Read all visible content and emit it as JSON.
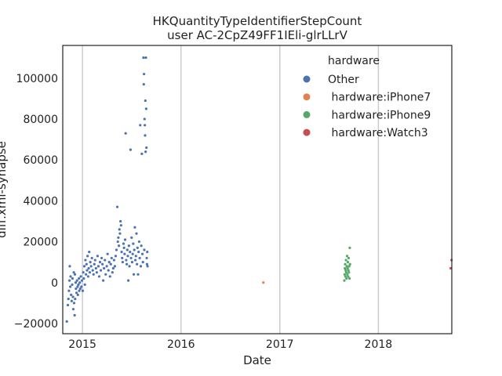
{
  "chart_data": {
    "type": "scatter",
    "title": "HKQuantityTypeIdentifierStepCount",
    "subtitle": "user AC-2CpZ49FF1IEli-glrLLrV",
    "xlabel": "Date",
    "ylabel": "diff.xml-synapse",
    "xlim": [
      "2014-10-20",
      "2018-09-30"
    ],
    "ylim": [
      -25000,
      116000
    ],
    "x_ticks": [
      "2015-01-01",
      "2016-01-01",
      "2017-01-01",
      "2018-01-01"
    ],
    "x_tick_labels": [
      "2015",
      "2016",
      "2017",
      "2018"
    ],
    "y_ticks": [
      -20000,
      0,
      20000,
      40000,
      60000,
      80000,
      100000
    ],
    "y_tick_labels": [
      "−20000",
      "0",
      "20000",
      "40000",
      "60000",
      "80000",
      "100000"
    ],
    "grid": "vertical",
    "legend": {
      "title": "hardware",
      "placement": "top-right",
      "entries": [
        "Other",
        " hardware:iPhone7",
        " hardware:iPhone9",
        " hardware:Watch3"
      ]
    },
    "series": [
      {
        "name": "Other",
        "color": "#4c72b0",
        "points": [
          [
            "2014-11-04",
            -19000
          ],
          [
            "2014-11-08",
            -11000
          ],
          [
            "2014-11-10",
            -8000
          ],
          [
            "2014-11-12",
            -4000
          ],
          [
            "2014-11-14",
            1000
          ],
          [
            "2014-11-15",
            8000
          ],
          [
            "2014-11-17",
            -2000
          ],
          [
            "2014-11-18",
            3000
          ],
          [
            "2014-11-20",
            -6000
          ],
          [
            "2014-11-22",
            -9000
          ],
          [
            "2014-11-24",
            -1000
          ],
          [
            "2014-11-25",
            2000
          ],
          [
            "2014-11-27",
            -7000
          ],
          [
            "2014-11-28",
            -13000
          ],
          [
            "2014-11-30",
            5000
          ],
          [
            "2014-12-01",
            -10000
          ],
          [
            "2014-12-03",
            -16000
          ],
          [
            "2014-12-04",
            4000
          ],
          [
            "2014-12-05",
            -8000
          ],
          [
            "2014-12-07",
            0
          ],
          [
            "2014-12-08",
            -3000
          ],
          [
            "2014-12-10",
            -5000
          ],
          [
            "2014-12-12",
            1000
          ],
          [
            "2014-12-14",
            -2000
          ],
          [
            "2014-12-15",
            -6000
          ],
          [
            "2014-12-17",
            -1000
          ],
          [
            "2014-12-19",
            2000
          ],
          [
            "2014-12-20",
            -4000
          ],
          [
            "2014-12-22",
            0
          ],
          [
            "2014-12-24",
            -3000
          ],
          [
            "2014-12-26",
            3000
          ],
          [
            "2014-12-28",
            -2000
          ],
          [
            "2014-12-30",
            1000
          ],
          [
            "2015-01-02",
            -4000
          ],
          [
            "2015-01-04",
            5000
          ],
          [
            "2015-01-06",
            2000
          ],
          [
            "2015-01-08",
            8000
          ],
          [
            "2015-01-10",
            -1000
          ],
          [
            "2015-01-12",
            11000
          ],
          [
            "2015-01-14",
            4000
          ],
          [
            "2015-01-16",
            9000
          ],
          [
            "2015-01-18",
            6000
          ],
          [
            "2015-01-20",
            13000
          ],
          [
            "2015-01-22",
            3000
          ],
          [
            "2015-01-24",
            7000
          ],
          [
            "2015-01-26",
            15000
          ],
          [
            "2015-01-28",
            5000
          ],
          [
            "2015-01-30",
            10000
          ],
          [
            "2015-02-02",
            8000
          ],
          [
            "2015-02-05",
            12000
          ],
          [
            "2015-02-08",
            6000
          ],
          [
            "2015-02-11",
            4000
          ],
          [
            "2015-02-14",
            9000
          ],
          [
            "2015-02-17",
            11000
          ],
          [
            "2015-02-20",
            7000
          ],
          [
            "2015-02-23",
            5000
          ],
          [
            "2015-02-26",
            13000
          ],
          [
            "2015-03-01",
            8000
          ],
          [
            "2015-03-04",
            3000
          ],
          [
            "2015-03-07",
            10000
          ],
          [
            "2015-03-10",
            6000
          ],
          [
            "2015-03-13",
            12000
          ],
          [
            "2015-03-16",
            9000
          ],
          [
            "2015-03-19",
            1000
          ],
          [
            "2015-03-22",
            7000
          ],
          [
            "2015-03-25",
            11000
          ],
          [
            "2015-03-28",
            4000
          ],
          [
            "2015-04-01",
            8000
          ],
          [
            "2015-04-04",
            14000
          ],
          [
            "2015-04-07",
            6000
          ],
          [
            "2015-04-10",
            10000
          ],
          [
            "2015-04-13",
            3000
          ],
          [
            "2015-04-16",
            9000
          ],
          [
            "2015-04-19",
            12000
          ],
          [
            "2015-04-22",
            5000
          ],
          [
            "2015-04-25",
            7000
          ],
          [
            "2015-04-28",
            11000
          ],
          [
            "2015-05-01",
            8000
          ],
          [
            "2015-05-04",
            13000
          ],
          [
            "2015-05-07",
            16000
          ],
          [
            "2015-05-10",
            37000
          ],
          [
            "2015-05-12",
            20000
          ],
          [
            "2015-05-14",
            22000
          ],
          [
            "2015-05-16",
            18000
          ],
          [
            "2015-05-18",
            26000
          ],
          [
            "2015-05-20",
            24000
          ],
          [
            "2015-05-22",
            30000
          ],
          [
            "2015-05-24",
            28000
          ],
          [
            "2015-05-26",
            15000
          ],
          [
            "2015-05-28",
            12000
          ],
          [
            "2015-05-30",
            10000
          ],
          [
            "2015-06-02",
            19000
          ],
          [
            "2015-06-04",
            17000
          ],
          [
            "2015-06-06",
            14000
          ],
          [
            "2015-06-08",
            21000
          ],
          [
            "2015-06-10",
            73000
          ],
          [
            "2015-06-12",
            11000
          ],
          [
            "2015-06-14",
            9000
          ],
          [
            "2015-06-16",
            16000
          ],
          [
            "2015-06-18",
            13000
          ],
          [
            "2015-06-20",
            1000
          ],
          [
            "2015-06-22",
            18000
          ],
          [
            "2015-06-24",
            8000
          ],
          [
            "2015-06-26",
            15000
          ],
          [
            "2015-06-28",
            65000
          ],
          [
            "2015-06-30",
            12000
          ],
          [
            "2015-07-02",
            22000
          ],
          [
            "2015-07-04",
            10000
          ],
          [
            "2015-07-06",
            14000
          ],
          [
            "2015-07-08",
            19000
          ],
          [
            "2015-07-10",
            4000
          ],
          [
            "2015-07-12",
            16000
          ],
          [
            "2015-07-14",
            27000
          ],
          [
            "2015-07-16",
            11000
          ],
          [
            "2015-07-18",
            13000
          ],
          [
            "2015-07-20",
            24000
          ],
          [
            "2015-07-22",
            9000
          ],
          [
            "2015-07-24",
            17000
          ],
          [
            "2015-07-26",
            4000
          ],
          [
            "2015-07-28",
            15000
          ],
          [
            "2015-07-30",
            20000
          ],
          [
            "2015-08-01",
            12000
          ],
          [
            "2015-08-03",
            77000
          ],
          [
            "2015-08-05",
            8000
          ],
          [
            "2015-08-07",
            18000
          ],
          [
            "2015-08-09",
            63000
          ],
          [
            "2015-08-11",
            14000
          ],
          [
            "2015-08-13",
            10000
          ],
          [
            "2015-08-15",
            110000
          ],
          [
            "2015-08-16",
            97000
          ],
          [
            "2015-08-17",
            102000
          ],
          [
            "2015-08-18",
            16000
          ],
          [
            "2015-08-19",
            80000
          ],
          [
            "2015-08-20",
            77000
          ],
          [
            "2015-08-21",
            72000
          ],
          [
            "2015-08-22",
            89000
          ],
          [
            "2015-08-23",
            64000
          ],
          [
            "2015-08-24",
            110000
          ],
          [
            "2015-08-25",
            85000
          ],
          [
            "2015-08-26",
            66000
          ],
          [
            "2015-08-27",
            12000
          ],
          [
            "2015-08-28",
            9000
          ],
          [
            "2015-08-29",
            15000
          ],
          [
            "2015-08-30",
            8000
          ]
        ]
      },
      {
        "name": " hardware:iPhone7",
        "color": "#dd8452",
        "points": [
          [
            "2016-11-01",
            0
          ]
        ]
      },
      {
        "name": " hardware:iPhone9",
        "color": "#55a868",
        "points": [
          [
            "2017-08-28",
            1000
          ],
          [
            "2017-08-29",
            4000
          ],
          [
            "2017-08-30",
            7000
          ],
          [
            "2017-08-31",
            9000
          ],
          [
            "2017-09-01",
            3000
          ],
          [
            "2017-09-02",
            6000
          ],
          [
            "2017-09-03",
            11000
          ],
          [
            "2017-09-04",
            5000
          ],
          [
            "2017-09-05",
            2000
          ],
          [
            "2017-09-06",
            8000
          ],
          [
            "2017-09-07",
            13000
          ],
          [
            "2017-09-08",
            4000
          ],
          [
            "2017-09-09",
            7000
          ],
          [
            "2017-09-10",
            10000
          ],
          [
            "2017-09-11",
            3000
          ],
          [
            "2017-09-12",
            6000
          ],
          [
            "2017-09-13",
            12000
          ],
          [
            "2017-09-14",
            5000
          ],
          [
            "2017-09-15",
            8000
          ],
          [
            "2017-09-16",
            2000
          ],
          [
            "2017-09-17",
            17000
          ],
          [
            "2017-09-18",
            9000
          ]
        ]
      },
      {
        "name": " hardware:Watch3",
        "color": "#c44e52",
        "points": [
          [
            "2018-09-26",
            7000
          ],
          [
            "2018-09-29",
            11000
          ]
        ]
      }
    ]
  }
}
